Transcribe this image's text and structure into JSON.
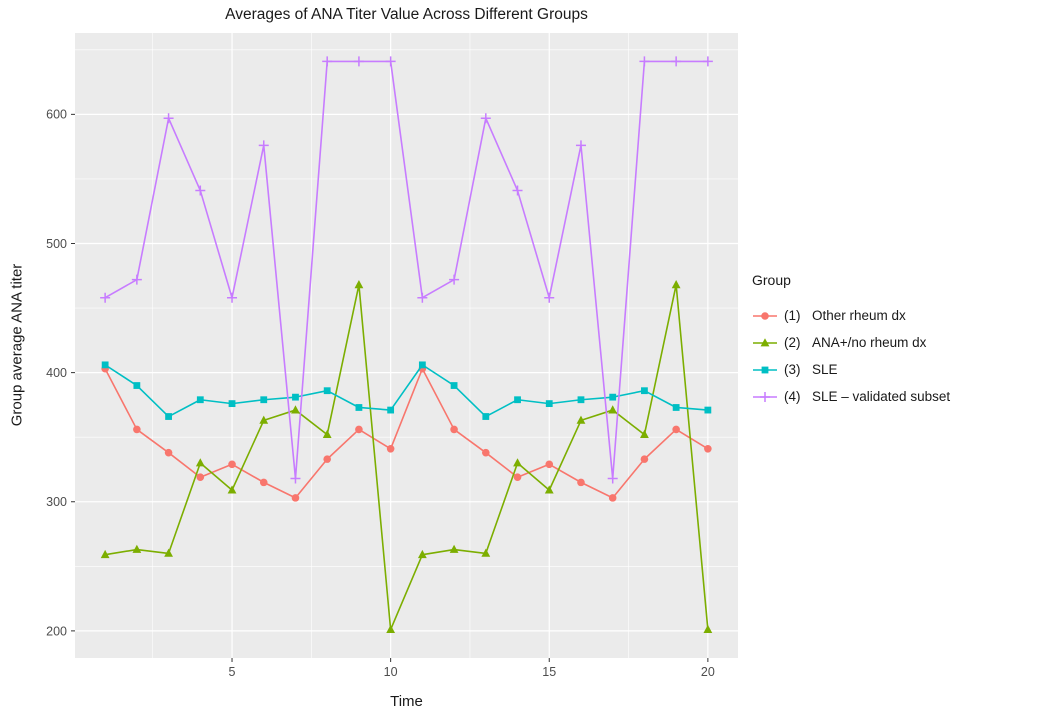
{
  "chart_data": {
    "type": "line",
    "title": "Averages of ANA Titer Value Across Different Groups",
    "xlabel": "Time",
    "ylabel": "Group average ANA titer",
    "legend_title": "Group",
    "panel_bg": "#EBEBEB",
    "grid_color": "#FFFFFF",
    "tick_label_color": "#4d4d4d",
    "xlim": [
      0.05,
      20.95
    ],
    "ylim": [
      179,
      663
    ],
    "xticks": [
      5,
      10,
      15,
      20
    ],
    "yticks": [
      200,
      300,
      400,
      500,
      600
    ],
    "xticks_minor": [
      2.5,
      7.5,
      12.5,
      17.5
    ],
    "yticks_minor": [
      250,
      350,
      450,
      550,
      650
    ],
    "x": [
      1,
      2,
      3,
      4,
      5,
      6,
      7,
      8,
      9,
      10,
      11,
      12,
      13,
      14,
      15,
      16,
      17,
      18,
      19,
      20
    ],
    "series": [
      {
        "name": "(1)",
        "label": "Other rheum dx",
        "color": "#F8766D",
        "marker": "circle",
        "values": [
          403,
          356,
          338,
          319,
          329,
          315,
          303,
          333,
          356,
          341,
          403,
          356,
          338,
          319,
          329,
          315,
          303,
          333,
          356,
          341
        ]
      },
      {
        "name": "(2)",
        "label": "ANA+/no rheum dx",
        "color": "#7CAE00",
        "marker": "triangle",
        "values": [
          259,
          263,
          260,
          330,
          309,
          363,
          371,
          352,
          468,
          201,
          259,
          263,
          260,
          330,
          309,
          363,
          371,
          352,
          468,
          201
        ]
      },
      {
        "name": "(3)",
        "label": "SLE",
        "color": "#00BFC4",
        "marker": "square",
        "values": [
          406,
          390,
          366,
          379,
          376,
          379,
          381,
          386,
          373,
          371,
          406,
          390,
          366,
          379,
          376,
          379,
          381,
          386,
          373,
          371
        ]
      },
      {
        "name": "(4)",
        "label": "SLE – validated subset",
        "color": "#C77CFF",
        "marker": "plus",
        "values": [
          458,
          472,
          597,
          541,
          458,
          576,
          318,
          641,
          641,
          641,
          458,
          472,
          597,
          541,
          458,
          576,
          318,
          641,
          641,
          641
        ]
      }
    ]
  }
}
